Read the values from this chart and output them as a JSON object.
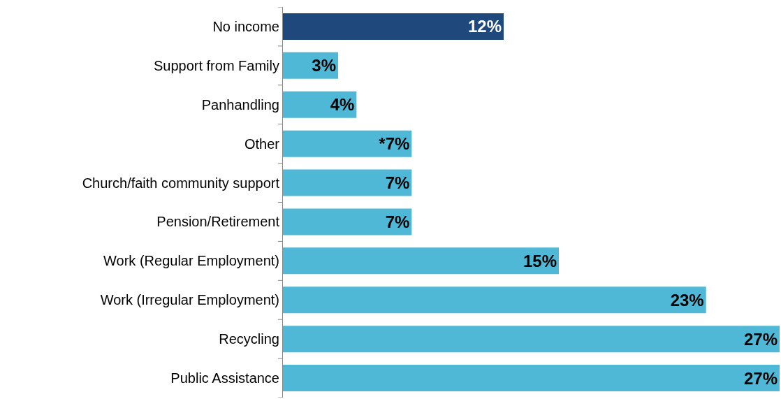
{
  "chart_data": {
    "type": "bar",
    "orientation": "horizontal",
    "categories": [
      "No income",
      "Support from Family",
      "Panhandling",
      "Other",
      "Church/faith community support",
      "Pension/Retirement",
      "Work (Regular Employment)",
      "Work (Irregular Employment)",
      "Recycling",
      "Public Assistance"
    ],
    "values": [
      12,
      3,
      4,
      7,
      7,
      7,
      15,
      23,
      27,
      27
    ],
    "value_labels": [
      "12%",
      "3%",
      "4%",
      "*7%",
      "7%",
      "7%",
      "15%",
      "23%",
      "27%",
      "27%"
    ],
    "colors": [
      "#1f497d",
      "#4fb8d6",
      "#4fb8d6",
      "#4fb8d6",
      "#4fb8d6",
      "#4fb8d6",
      "#4fb8d6",
      "#4fb8d6",
      "#4fb8d6",
      "#4fb8d6"
    ]
  }
}
